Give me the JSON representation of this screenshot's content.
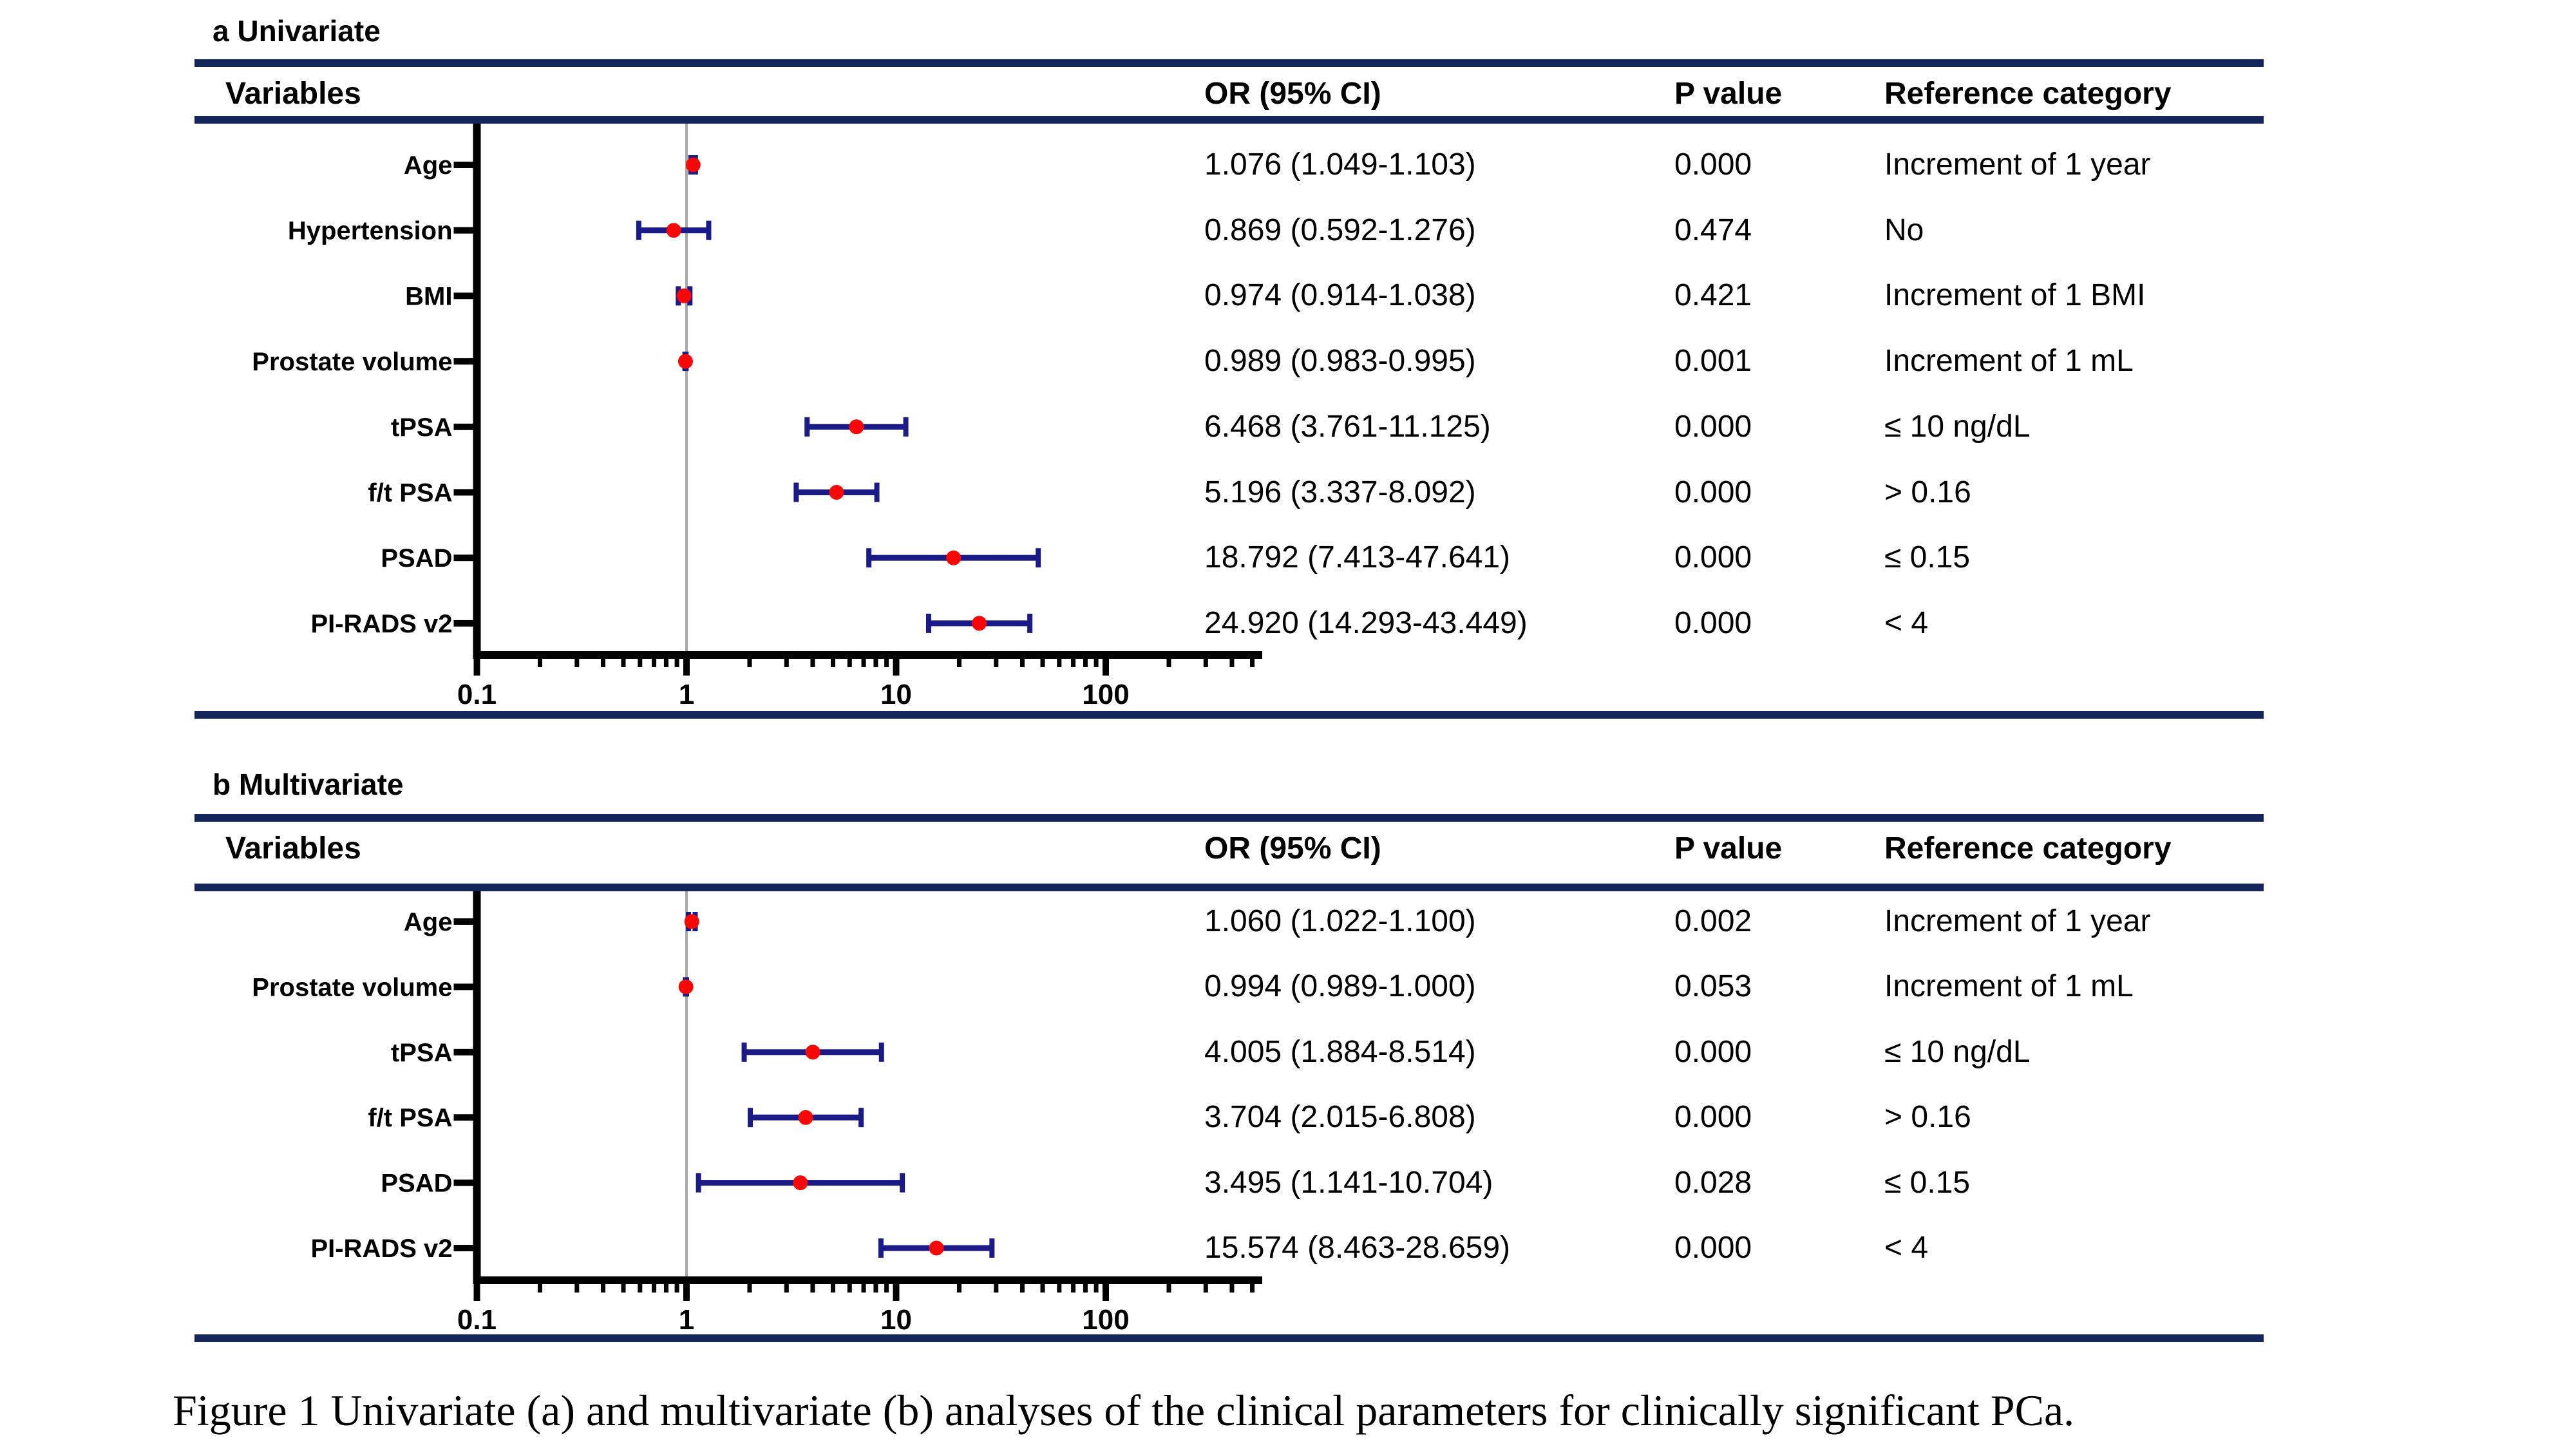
{
  "caption": "Figure 1 Univariate (a) and multivariate (b) analyses of the clinical parameters for clinically significant PCa.",
  "colors": {
    "rule_navy": "#15265d",
    "error_bar_navy": "#1b1b87",
    "marker_red": "#f90606",
    "reference_line_gray": "#a9a9a9",
    "axis_black": "#000000"
  },
  "chart_data": [
    {
      "type": "scatter",
      "variant": "forest-plot",
      "title": "a Univariate",
      "x_scale": "log10",
      "x_range": [
        0.1,
        500
      ],
      "x_tick_values": [
        0.1,
        1,
        10,
        100
      ],
      "x_tick_labels": [
        "0.1",
        "1",
        "10",
        "100"
      ],
      "reference_line_x": 1,
      "columns_header": {
        "variables": "Variables",
        "or": "OR (95% CI)",
        "p": "P value",
        "ref": "Reference category"
      },
      "rows": [
        {
          "variable": "Age",
          "or": 1.076,
          "ci_low": 1.049,
          "ci_high": 1.103,
          "or_text": "1.076 (1.049-1.103)",
          "p_value": "0.000",
          "reference": "Increment of 1 year"
        },
        {
          "variable": "Hypertension",
          "or": 0.869,
          "ci_low": 0.592,
          "ci_high": 1.276,
          "or_text": "0.869 (0.592-1.276)",
          "p_value": "0.474",
          "reference": "No"
        },
        {
          "variable": "BMI",
          "or": 0.974,
          "ci_low": 0.914,
          "ci_high": 1.038,
          "or_text": "0.974 (0.914-1.038)",
          "p_value": "0.421",
          "reference": "Increment of 1 BMI"
        },
        {
          "variable": "Prostate volume",
          "or": 0.989,
          "ci_low": 0.983,
          "ci_high": 0.995,
          "or_text": "0.989 (0.983-0.995)",
          "p_value": "0.001",
          "reference": "Increment of 1 mL"
        },
        {
          "variable": "tPSA",
          "or": 6.468,
          "ci_low": 3.761,
          "ci_high": 11.125,
          "or_text": "6.468 (3.761-11.125)",
          "p_value": "0.000",
          "reference": "≤ 10 ng/dL"
        },
        {
          "variable": "f/t PSA",
          "or": 5.196,
          "ci_low": 3.337,
          "ci_high": 8.092,
          "or_text": "5.196 (3.337-8.092)",
          "p_value": "0.000",
          "reference": "> 0.16"
        },
        {
          "variable": "PSAD",
          "or": 18.792,
          "ci_low": 7.413,
          "ci_high": 47.641,
          "or_text": "18.792 (7.413-47.641)",
          "p_value": "0.000",
          "reference": "≤ 0.15"
        },
        {
          "variable": "PI-RADS v2",
          "or": 24.92,
          "ci_low": 14.293,
          "ci_high": 43.449,
          "or_text": "24.920 (14.293-43.449)",
          "p_value": "0.000",
          "reference": "< 4"
        }
      ]
    },
    {
      "type": "scatter",
      "variant": "forest-plot",
      "title": "b Multivariate",
      "x_scale": "log10",
      "x_range": [
        0.1,
        500
      ],
      "x_tick_values": [
        0.1,
        1,
        10,
        100
      ],
      "x_tick_labels": [
        "0.1",
        "1",
        "10",
        "100"
      ],
      "reference_line_x": 1,
      "columns_header": {
        "variables": "Variables",
        "or": "OR (95% CI)",
        "p": "P value",
        "ref": "Reference category"
      },
      "rows": [
        {
          "variable": "Age",
          "or": 1.06,
          "ci_low": 1.022,
          "ci_high": 1.1,
          "or_text": "1.060 (1.022-1.100)",
          "p_value": "0.002",
          "reference": "Increment of 1 year"
        },
        {
          "variable": "Prostate volume",
          "or": 0.994,
          "ci_low": 0.989,
          "ci_high": 1.0,
          "or_text": "0.994 (0.989-1.000)",
          "p_value": "0.053",
          "reference": "Increment of 1 mL"
        },
        {
          "variable": "tPSA",
          "or": 4.005,
          "ci_low": 1.884,
          "ci_high": 8.514,
          "or_text": "4.005 (1.884-8.514)",
          "p_value": "0.000",
          "reference": "≤ 10 ng/dL"
        },
        {
          "variable": "f/t PSA",
          "or": 3.704,
          "ci_low": 2.015,
          "ci_high": 6.808,
          "or_text": "3.704 (2.015-6.808)",
          "p_value": "0.000",
          "reference": "> 0.16"
        },
        {
          "variable": "PSAD",
          "or": 3.495,
          "ci_low": 1.141,
          "ci_high": 10.704,
          "or_text": "3.495 (1.141-10.704)",
          "p_value": "0.028",
          "reference": "≤ 0.15"
        },
        {
          "variable": "PI-RADS v2",
          "or": 15.574,
          "ci_low": 8.463,
          "ci_high": 28.659,
          "or_text": "15.574 (8.463-28.659)",
          "p_value": "0.000",
          "reference": "< 4"
        }
      ]
    }
  ]
}
